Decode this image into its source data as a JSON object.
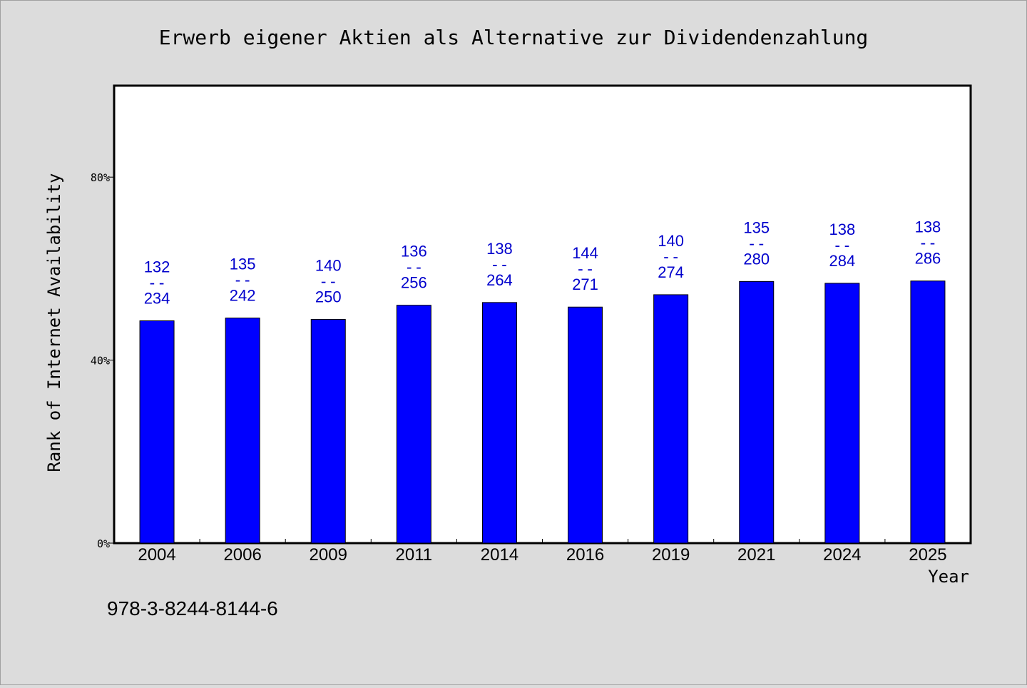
{
  "chart_data": {
    "type": "bar",
    "title": "Erwerb eigener Aktien als Alternative zur Dividendenzahlung",
    "xlabel": "Year",
    "ylabel": "Rank of Internet Availability",
    "categories": [
      "2004",
      "2006",
      "2009",
      "2011",
      "2014",
      "2016",
      "2019",
      "2021",
      "2024",
      "2025"
    ],
    "values": [
      48.6,
      49.2,
      48.9,
      52.0,
      52.6,
      51.6,
      54.3,
      57.2,
      56.8,
      57.3
    ],
    "value_unit": "%",
    "bar_labels": [
      {
        "top": "132",
        "bottom": "234"
      },
      {
        "top": "135",
        "bottom": "242"
      },
      {
        "top": "140",
        "bottom": "250"
      },
      {
        "top": "136",
        "bottom": "256"
      },
      {
        "top": "138",
        "bottom": "264"
      },
      {
        "top": "144",
        "bottom": "271"
      },
      {
        "top": "140",
        "bottom": "274"
      },
      {
        "top": "135",
        "bottom": "280"
      },
      {
        "top": "138",
        "bottom": "284"
      },
      {
        "top": "138",
        "bottom": "286"
      }
    ],
    "label_separator": "--",
    "ylim": [
      0,
      100
    ],
    "yticks": [
      0,
      40,
      80
    ],
    "ytick_labels": [
      "0%",
      "40%",
      "80%"
    ],
    "grid": false,
    "legend": "none",
    "colors": {
      "bar": "#0000ff",
      "bar_label": "#0000cc",
      "background": "#dcdcdc",
      "plot_background": "#ffffff",
      "axis": "#000000"
    }
  },
  "footnote": "978-3-8244-8144-6"
}
